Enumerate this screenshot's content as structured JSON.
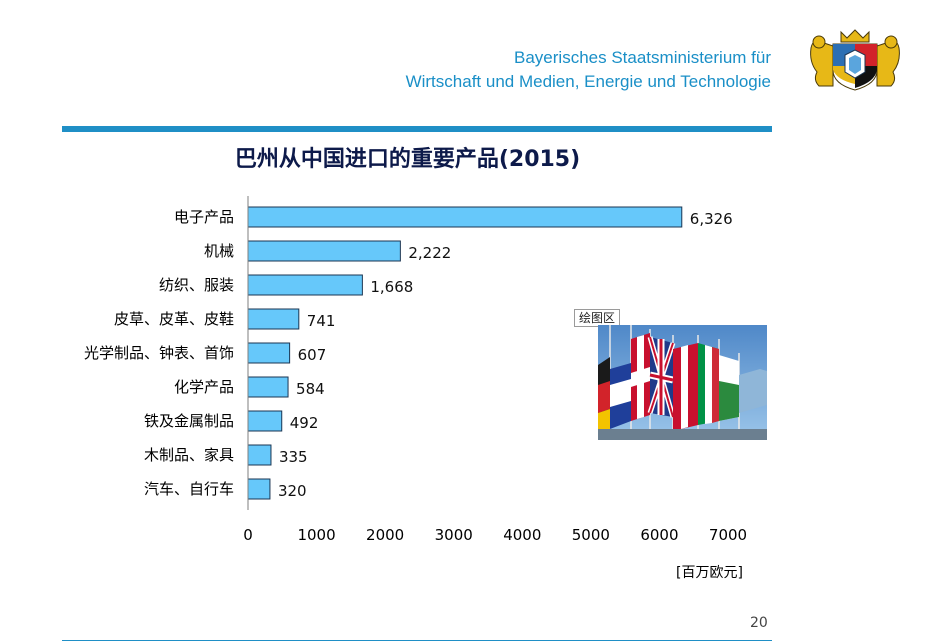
{
  "header": {
    "ministry_line1": "Bayerisches Staatsministerium für",
    "ministry_line2": "Wirtschaft und Medien, Energie und Technologie"
  },
  "slide": {
    "unit": "[百万欧元]",
    "photo_label": "绘图区",
    "page_number": "20"
  },
  "colors": {
    "bar": "#66c8fa",
    "bar_edge": "#1b3552",
    "accent": "#1f8fc6",
    "title": "#0d1a4a"
  },
  "chart_data": {
    "type": "bar",
    "orientation": "horizontal",
    "title": "巴州从中国进口的重要产品(2015)",
    "categories": [
      "电子产品",
      "机械",
      "纺织、服装",
      "皮草、皮革、皮鞋",
      "光学制品、钟表、首饰",
      "化学产品",
      "铁及金属制品",
      "木制品、家具",
      "汽车、自行车"
    ],
    "values": [
      6326,
      2222,
      1668,
      741,
      607,
      584,
      492,
      335,
      320
    ],
    "value_labels": [
      "6,326",
      "2,222",
      "1,668",
      "741",
      "607",
      "584",
      "492",
      "335",
      "320"
    ],
    "xlim": [
      0,
      7000
    ],
    "xticks": [
      0,
      1000,
      2000,
      3000,
      4000,
      5000,
      6000,
      7000
    ],
    "xlabel": "[百万欧元]",
    "grid": false,
    "legend": "none"
  }
}
